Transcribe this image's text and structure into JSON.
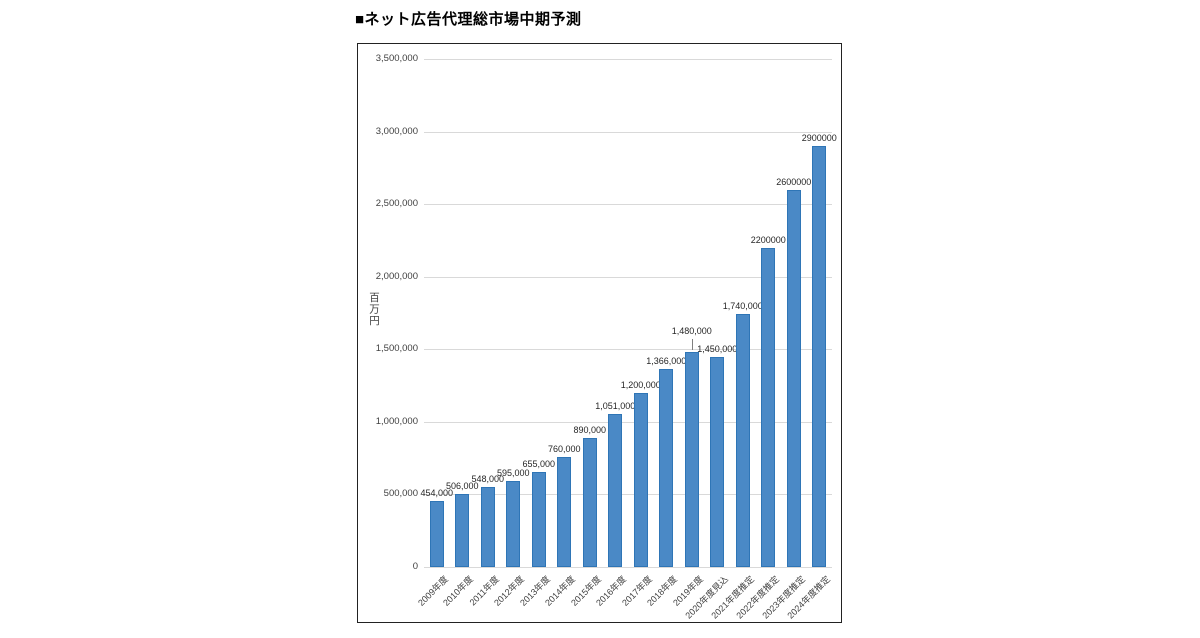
{
  "page": {
    "heading": "■ネット広告代理総市場中期予測"
  },
  "chart_data": {
    "type": "bar",
    "title": "ネット広告代理総市場中期予測",
    "xlabel": "",
    "ylabel": "百万円",
    "ylim": [
      0,
      3500000
    ],
    "ytick_step": 500000,
    "ytick_labels": [
      "0",
      "500,000",
      "1,000,000",
      "1,500,000",
      "2,000,000",
      "2,500,000",
      "3,000,000",
      "3,500,000"
    ],
    "grid": true,
    "legend": "none",
    "categories": [
      "2009年度",
      "2010年度",
      "2011年度",
      "2012年度",
      "2013年度",
      "2014年度",
      "2015年度",
      "2016年度",
      "2017年度",
      "2018年度",
      "2019年度",
      "2020年度見込",
      "2021年度推定",
      "2022年度推定",
      "2023年度推定",
      "2024年度推定"
    ],
    "values": [
      454000,
      506000,
      548000,
      595000,
      655000,
      760000,
      890000,
      1051000,
      1200000,
      1366000,
      1480000,
      1450000,
      1740000,
      2200000,
      2600000,
      2900000
    ],
    "data_labels": [
      "454,000",
      "506,000",
      "548,000",
      "595,000",
      "655,000",
      "760,000",
      "890,000",
      "1,051,000",
      "1,200,000",
      "1,366,000",
      "1,480,000",
      "1,450,000",
      "1,740,000",
      "2200000",
      "2600000",
      "2900000"
    ],
    "lifted_label_index": 10,
    "colors": {
      "bar_fill": "#4A89C6",
      "bar_border": "#2E75B6",
      "gridline": "#D9D9D9",
      "axis_text": "#404040",
      "label_text": "#262626",
      "leader_line": "#7F7F7F",
      "chart_border": "#222222"
    }
  }
}
